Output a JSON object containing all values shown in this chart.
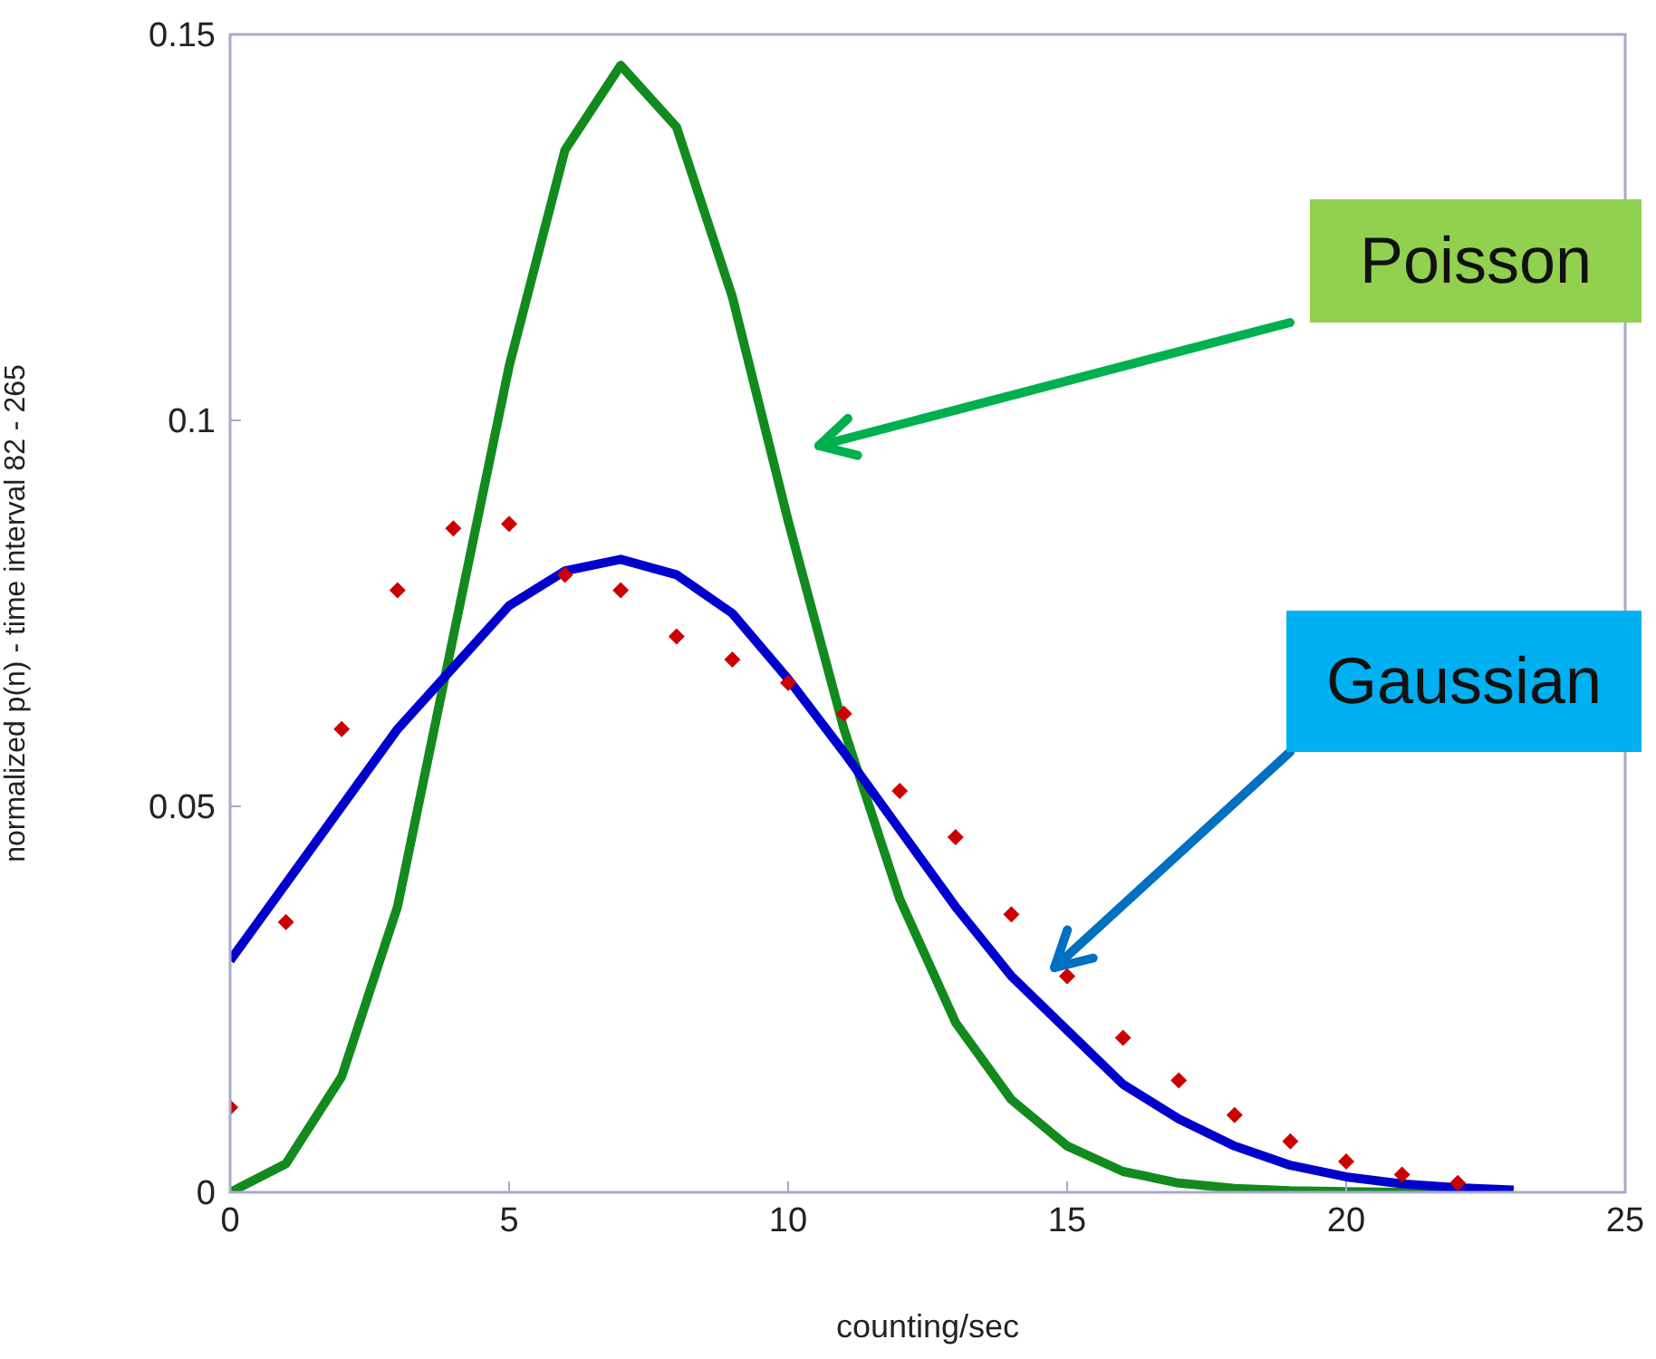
{
  "chart_data": {
    "type": "line",
    "xlabel": "counting/sec",
    "ylabel": "normalized p(n) - time interval 82 - 265",
    "x": [
      0,
      1,
      2,
      3,
      4,
      5,
      6,
      7,
      8,
      9,
      10,
      11,
      12,
      13,
      14,
      15,
      16,
      17,
      18,
      19,
      20,
      21,
      22,
      23
    ],
    "xlim": [
      0,
      25
    ],
    "xticks": [
      0,
      5,
      10,
      15,
      20,
      25
    ],
    "ylim": [
      0,
      0.15
    ],
    "yticks": [
      0,
      0.05,
      0.1,
      0.15
    ],
    "grid": false,
    "legend": false,
    "series": [
      {
        "type": "scatter",
        "marker": "diamond",
        "color": "#cc0000",
        "x": [
          0,
          1,
          2,
          3,
          4,
          5,
          6,
          7,
          8,
          9,
          10,
          11,
          12,
          13,
          14,
          15,
          16,
          17,
          18,
          19,
          20,
          21,
          22
        ],
        "values": [
          0.011,
          0.035,
          0.06,
          0.078,
          0.086,
          0.0866,
          0.08,
          0.078,
          0.072,
          0.069,
          0.066,
          0.062,
          0.052,
          0.046,
          0.036,
          0.028,
          0.02,
          0.0145,
          0.01,
          0.0066,
          0.004,
          0.0023,
          0.0012
        ]
      },
      {
        "color": "#138a1e",
        "values": [
          0,
          0.0037,
          0.015,
          0.037,
          0.072,
          0.107,
          0.135,
          0.146,
          0.138,
          0.116,
          0.087,
          0.06,
          0.038,
          0.022,
          0.012,
          0.006,
          0.0027,
          0.0012,
          0.0005,
          0.0002,
          0.0001,
          0,
          0,
          0
        ]
      },
      {
        "color": "#0000cc",
        "values": [
          0.03,
          0.04,
          0.05,
          0.06,
          0.068,
          0.076,
          0.0805,
          0.082,
          0.08,
          0.075,
          0.0665,
          0.057,
          0.047,
          0.037,
          0.028,
          0.021,
          0.014,
          0.0095,
          0.006,
          0.0035,
          0.002,
          0.0011,
          0.0006,
          0.0003
        ]
      }
    ],
    "annotations": [
      "Poisson",
      "Gaussian"
    ]
  }
}
